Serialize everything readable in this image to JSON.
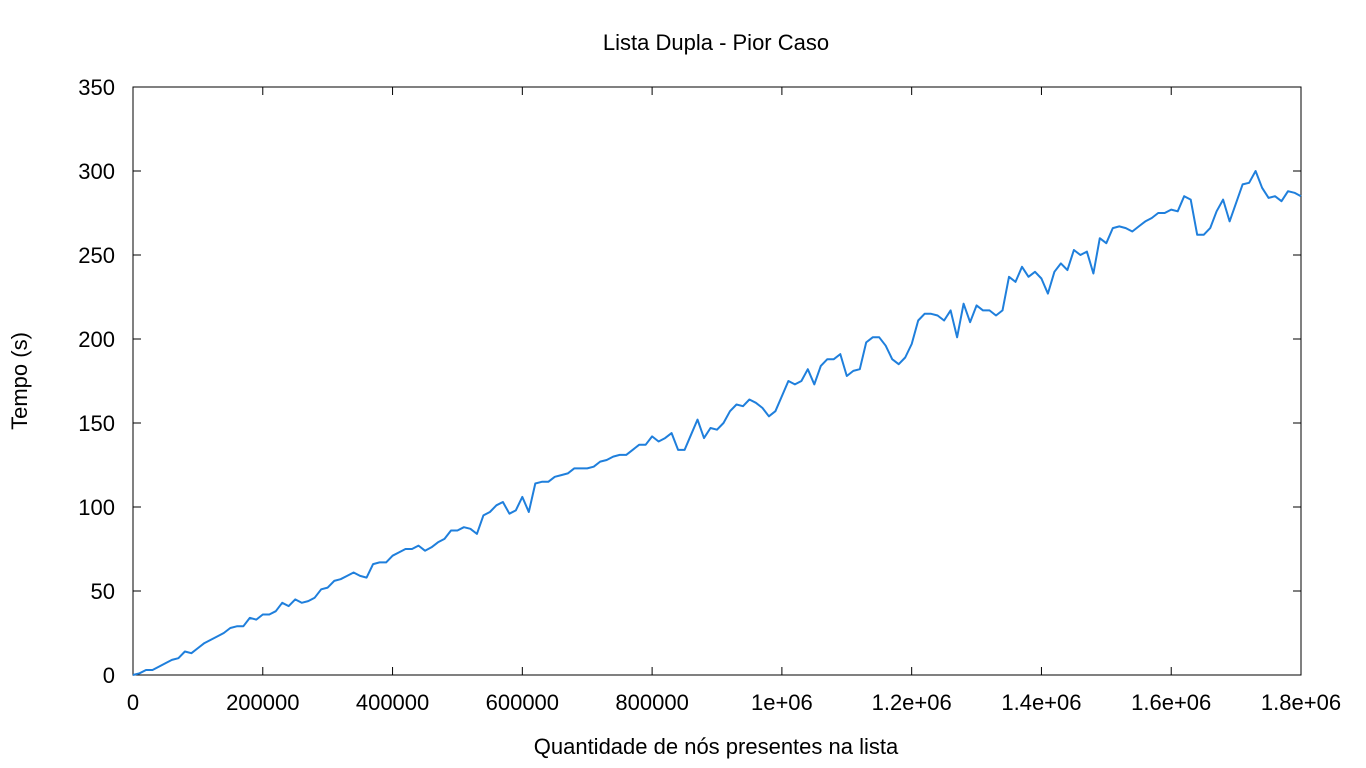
{
  "chart_data": {
    "type": "line",
    "title": "Lista Dupla - Pior Caso",
    "xlabel": "Quantidade de nós presentes na lista",
    "ylabel": "Tempo (s)",
    "xlim": [
      0,
      1800000
    ],
    "ylim": [
      0,
      350
    ],
    "grid": false,
    "legend": "none",
    "line_color": "#1f7fdc",
    "x_ticks": [
      {
        "value": 0,
        "label": "0"
      },
      {
        "value": 200000,
        "label": "200000"
      },
      {
        "value": 400000,
        "label": "400000"
      },
      {
        "value": 600000,
        "label": "600000"
      },
      {
        "value": 800000,
        "label": "800000"
      },
      {
        "value": 1000000,
        "label": "1e+06"
      },
      {
        "value": 1200000,
        "label": "1.2e+06"
      },
      {
        "value": 1400000,
        "label": "1.4e+06"
      },
      {
        "value": 1600000,
        "label": "1.6e+06"
      },
      {
        "value": 1800000,
        "label": "1.8e+06"
      }
    ],
    "y_ticks": [
      {
        "value": 0,
        "label": "0"
      },
      {
        "value": 50,
        "label": "50"
      },
      {
        "value": 100,
        "label": "100"
      },
      {
        "value": 150,
        "label": "150"
      },
      {
        "value": 200,
        "label": "200"
      },
      {
        "value": 250,
        "label": "250"
      },
      {
        "value": 300,
        "label": "300"
      },
      {
        "value": 350,
        "label": "350"
      }
    ],
    "series": [
      {
        "x": [
          0,
          10000,
          20000,
          30000,
          40000,
          50000,
          60000,
          70000,
          80000,
          90000,
          100000,
          110000,
          120000,
          130000,
          140000,
          150000,
          160000,
          170000,
          180000,
          190000,
          200000,
          210000,
          220000,
          230000,
          240000,
          250000,
          260000,
          270000,
          280000,
          290000,
          300000,
          310000,
          320000,
          330000,
          340000,
          350000,
          360000,
          370000,
          380000,
          390000,
          400000,
          410000,
          420000,
          430000,
          440000,
          450000,
          460000,
          470000,
          480000,
          490000,
          500000,
          510000,
          520000,
          530000,
          540000,
          550000,
          560000,
          570000,
          580000,
          590000,
          600000,
          610000,
          620000,
          630000,
          640000,
          650000,
          660000,
          670000,
          680000,
          690000,
          700000,
          710000,
          720000,
          730000,
          740000,
          750000,
          760000,
          770000,
          780000,
          790000,
          800000,
          810000,
          820000,
          830000,
          840000,
          850000,
          860000,
          870000,
          880000,
          890000,
          900000,
          910000,
          920000,
          930000,
          940000,
          950000,
          960000,
          970000,
          980000,
          990000,
          1000000,
          1010000,
          1020000,
          1030000,
          1040000,
          1050000,
          1060000,
          1070000,
          1080000,
          1090000,
          1100000,
          1110000,
          1120000,
          1130000,
          1140000,
          1150000,
          1160000,
          1170000,
          1180000,
          1190000,
          1200000,
          1210000,
          1220000,
          1230000,
          1240000,
          1250000,
          1260000,
          1270000,
          1280000,
          1290000,
          1300000,
          1310000,
          1320000,
          1330000,
          1340000,
          1350000,
          1360000,
          1370000,
          1380000,
          1390000,
          1400000,
          1410000,
          1420000,
          1430000,
          1440000,
          1450000,
          1460000,
          1470000,
          1480000,
          1490000,
          1500000,
          1510000,
          1520000,
          1530000,
          1540000,
          1550000,
          1560000,
          1570000,
          1580000,
          1590000,
          1600000,
          1610000,
          1620000,
          1630000,
          1640000,
          1650000,
          1660000,
          1670000,
          1680000,
          1690000,
          1700000,
          1710000,
          1720000,
          1730000,
          1740000,
          1750000,
          1760000,
          1770000,
          1780000,
          1790000,
          1800000
        ],
        "y": [
          0,
          1,
          3,
          3,
          5,
          7,
          9,
          10,
          14,
          13,
          16,
          19,
          21,
          23,
          25,
          28,
          29,
          29,
          34,
          33,
          36,
          36,
          38,
          43,
          41,
          45,
          43,
          44,
          46,
          51,
          52,
          56,
          57,
          59,
          61,
          59,
          58,
          66,
          67,
          67,
          71,
          73,
          75,
          75,
          77,
          74,
          76,
          79,
          81,
          86,
          86,
          88,
          87,
          84,
          95,
          97,
          101,
          103,
          96,
          98,
          106,
          97,
          114,
          115,
          115,
          118,
          119,
          120,
          123,
          123,
          123,
          124,
          127,
          128,
          130,
          131,
          131,
          134,
          137,
          137,
          142,
          139,
          141,
          144,
          134,
          134,
          143,
          152,
          141,
          147,
          146,
          150,
          157,
          161,
          160,
          164,
          162,
          159,
          154,
          157,
          166,
          175,
          173,
          175,
          182,
          173,
          184,
          188,
          188,
          191,
          178,
          181,
          182,
          198,
          201,
          201,
          196,
          188,
          185,
          189,
          197,
          211,
          215,
          215,
          214,
          211,
          217,
          201,
          221,
          210,
          220,
          217,
          217,
          214,
          217,
          237,
          234,
          243,
          237,
          240,
          236,
          227,
          240,
          245,
          241,
          253,
          250,
          252,
          239,
          260,
          257,
          266,
          267,
          266,
          264,
          267,
          270,
          272,
          275,
          275,
          277,
          276,
          285,
          283,
          262,
          262,
          266,
          276,
          283,
          270,
          281,
          292,
          293,
          300,
          290,
          284,
          285,
          282,
          288,
          287,
          285
        ]
      }
    ]
  }
}
